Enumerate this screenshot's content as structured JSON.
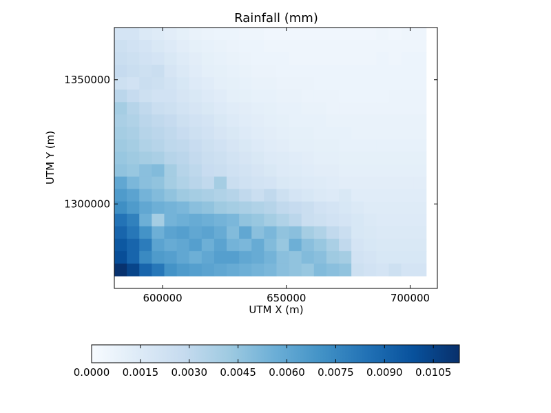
{
  "chart_data": {
    "type": "heatmap",
    "title": "Rainfall (mm)",
    "xlabel": "UTM X (m)",
    "ylabel": "UTM Y (m)",
    "x_ticks": [
      600000,
      650000,
      700000
    ],
    "x_tick_labels": [
      "600000",
      "650000",
      "700000"
    ],
    "y_ticks": [
      1300000,
      1350000
    ],
    "y_tick_labels": [
      "1300000",
      "1350000"
    ],
    "xlim": [
      580500,
      711000
    ],
    "ylim": [
      1266000,
      1371000
    ],
    "grid": false,
    "colormap": "Blues",
    "colormap_stops": [
      "#f7fbff",
      "#deebf7",
      "#c6dbef",
      "#9ecae1",
      "#6baed6",
      "#4292c6",
      "#2171b5",
      "#08519c",
      "#08306b"
    ],
    "cell_grid": {
      "x_min": 580500,
      "x_max": 706500,
      "n_cols": 25,
      "y_min": 1271000,
      "y_max": 1371000,
      "n_rows": 20
    },
    "values_top_to_bottom": [
      [
        0.002,
        0.002,
        0.0016,
        0.0014,
        0.0012,
        0.001,
        0.0008,
        0.0007,
        0.0006,
        0.0006,
        0.0005,
        0.0005,
        0.0004,
        0.0004,
        0.0004,
        0.0004,
        0.0004,
        0.0004,
        0.0004,
        0.0004,
        0.0004,
        0.0005,
        0.0004,
        0.0005,
        0.0005
      ],
      [
        0.0024,
        0.0022,
        0.002,
        0.0017,
        0.0015,
        0.0012,
        0.001,
        0.0009,
        0.0008,
        0.0007,
        0.0006,
        0.0006,
        0.0005,
        0.0005,
        0.0005,
        0.0005,
        0.0005,
        0.0005,
        0.0005,
        0.0005,
        0.0005,
        0.0005,
        0.0005,
        0.0005,
        0.0005
      ],
      [
        0.0026,
        0.0024,
        0.0022,
        0.002,
        0.0017,
        0.0014,
        0.0012,
        0.001,
        0.0009,
        0.0008,
        0.0007,
        0.0006,
        0.0006,
        0.0006,
        0.0005,
        0.0005,
        0.0005,
        0.0005,
        0.0005,
        0.0005,
        0.0005,
        0.0006,
        0.0005,
        0.0006,
        0.0006
      ],
      [
        0.0028,
        0.0026,
        0.0024,
        0.0026,
        0.0019,
        0.0016,
        0.0013,
        0.0011,
        0.001,
        0.0009,
        0.0008,
        0.0007,
        0.0007,
        0.0006,
        0.0006,
        0.0006,
        0.0006,
        0.0006,
        0.0006,
        0.0006,
        0.0006,
        0.0006,
        0.0006,
        0.0006,
        0.0006
      ],
      [
        0.0024,
        0.0022,
        0.0026,
        0.0024,
        0.0021,
        0.0018,
        0.0015,
        0.0013,
        0.0011,
        0.001,
        0.0009,
        0.0008,
        0.0008,
        0.0007,
        0.0007,
        0.0007,
        0.0006,
        0.0006,
        0.0006,
        0.0006,
        0.0006,
        0.0006,
        0.0006,
        0.0006,
        0.0006
      ],
      [
        0.0032,
        0.0028,
        0.0024,
        0.0022,
        0.0022,
        0.0019,
        0.0017,
        0.0015,
        0.0013,
        0.0011,
        0.001,
        0.0009,
        0.0009,
        0.0008,
        0.0008,
        0.0007,
        0.0007,
        0.0007,
        0.0006,
        0.0006,
        0.0006,
        0.0006,
        0.0007,
        0.0007,
        0.0007
      ],
      [
        0.004,
        0.0034,
        0.003,
        0.0026,
        0.0024,
        0.0021,
        0.0019,
        0.0017,
        0.0015,
        0.0013,
        0.0012,
        0.0011,
        0.001,
        0.0009,
        0.0009,
        0.0008,
        0.0008,
        0.0007,
        0.0007,
        0.0007,
        0.0007,
        0.0007,
        0.0007,
        0.0007,
        0.0007
      ],
      [
        0.0038,
        0.0036,
        0.0032,
        0.003,
        0.0028,
        0.0024,
        0.0022,
        0.002,
        0.0017,
        0.0015,
        0.0013,
        0.0012,
        0.0011,
        0.001,
        0.0009,
        0.0009,
        0.0009,
        0.0008,
        0.0008,
        0.0008,
        0.0008,
        0.0008,
        0.0008,
        0.0008,
        0.0008
      ],
      [
        0.004,
        0.0038,
        0.0034,
        0.0032,
        0.003,
        0.0027,
        0.0024,
        0.0022,
        0.0019,
        0.0017,
        0.0015,
        0.0013,
        0.0012,
        0.0011,
        0.001,
        0.001,
        0.0009,
        0.0009,
        0.0009,
        0.0008,
        0.0008,
        0.0008,
        0.0008,
        0.0008,
        0.0008
      ],
      [
        0.0042,
        0.004,
        0.0036,
        0.0034,
        0.0031,
        0.003,
        0.0027,
        0.0024,
        0.0022,
        0.0019,
        0.0017,
        0.0015,
        0.0013,
        0.0012,
        0.0011,
        0.0011,
        0.001,
        0.001,
        0.0009,
        0.0009,
        0.0009,
        0.0009,
        0.0009,
        0.0009,
        0.0009
      ],
      [
        0.0044,
        0.0042,
        0.004,
        0.0038,
        0.0034,
        0.0032,
        0.0029,
        0.0026,
        0.0024,
        0.0021,
        0.0019,
        0.0017,
        0.0015,
        0.0014,
        0.0013,
        0.0012,
        0.0011,
        0.0011,
        0.001,
        0.001,
        0.001,
        0.001,
        0.001,
        0.001,
        0.001
      ],
      [
        0.0046,
        0.0044,
        0.0048,
        0.005,
        0.004,
        0.0034,
        0.0031,
        0.0027,
        0.0026,
        0.0023,
        0.0021,
        0.0019,
        0.0017,
        0.0015,
        0.0014,
        0.0013,
        0.0012,
        0.0012,
        0.0011,
        0.0011,
        0.0011,
        0.0011,
        0.0011,
        0.0011,
        0.0011
      ],
      [
        0.006,
        0.0052,
        0.0048,
        0.0046,
        0.004,
        0.0036,
        0.0033,
        0.003,
        0.004,
        0.0026,
        0.0023,
        0.0021,
        0.002,
        0.0017,
        0.0016,
        0.0015,
        0.0014,
        0.0013,
        0.0012,
        0.0012,
        0.0012,
        0.0012,
        0.0012,
        0.0012,
        0.0012
      ],
      [
        0.0066,
        0.0062,
        0.0054,
        0.005,
        0.0046,
        0.0042,
        0.004,
        0.0038,
        0.0036,
        0.0034,
        0.003,
        0.0026,
        0.003,
        0.0024,
        0.002,
        0.0018,
        0.0016,
        0.0015,
        0.0017,
        0.0013,
        0.0013,
        0.0013,
        0.0013,
        0.0013,
        0.0013
      ],
      [
        0.0072,
        0.0066,
        0.006,
        0.0056,
        0.0054,
        0.0052,
        0.0048,
        0.0046,
        0.0042,
        0.004,
        0.0038,
        0.0036,
        0.0034,
        0.003,
        0.0028,
        0.0026,
        0.0022,
        0.002,
        0.0018,
        0.0016,
        0.0014,
        0.0014,
        0.0014,
        0.0014,
        0.0014
      ],
      [
        0.0084,
        0.0078,
        0.0056,
        0.004,
        0.0054,
        0.0056,
        0.0058,
        0.0056,
        0.0054,
        0.0052,
        0.0046,
        0.0044,
        0.004,
        0.0036,
        0.0032,
        0.0026,
        0.0024,
        0.0022,
        0.002,
        0.0018,
        0.0016,
        0.0015,
        0.0015,
        0.0015,
        0.0015
      ],
      [
        0.009,
        0.0082,
        0.007,
        0.0056,
        0.0062,
        0.0064,
        0.006,
        0.0062,
        0.0058,
        0.005,
        0.006,
        0.0048,
        0.0052,
        0.0046,
        0.0048,
        0.004,
        0.0036,
        0.003,
        0.0026,
        0.0018,
        0.0017,
        0.0016,
        0.0016,
        0.0016,
        0.0016
      ],
      [
        0.0096,
        0.009,
        0.008,
        0.0062,
        0.0058,
        0.006,
        0.0064,
        0.0056,
        0.0062,
        0.0054,
        0.0052,
        0.0058,
        0.005,
        0.0044,
        0.0056,
        0.0048,
        0.0044,
        0.0038,
        0.003,
        0.002,
        0.0018,
        0.0017,
        0.0017,
        0.0017,
        0.0017
      ],
      [
        0.01,
        0.009,
        0.0074,
        0.0066,
        0.0064,
        0.006,
        0.0056,
        0.006,
        0.0064,
        0.0064,
        0.006,
        0.0058,
        0.0054,
        0.0048,
        0.0046,
        0.005,
        0.0048,
        0.0042,
        0.004,
        0.0022,
        0.002,
        0.0018,
        0.0018,
        0.0018,
        0.0018
      ],
      [
        0.0112,
        0.0104,
        0.009,
        0.0082,
        0.007,
        0.0066,
        0.0064,
        0.0062,
        0.006,
        0.0058,
        0.0056,
        0.0054,
        0.0052,
        0.0048,
        0.0046,
        0.0044,
        0.005,
        0.0048,
        0.0046,
        0.0024,
        0.0022,
        0.002,
        0.0024,
        0.002,
        0.002
      ]
    ],
    "colorbar": {
      "min": 0.0,
      "max": 0.0113,
      "orientation": "horizontal",
      "ticks": [
        0.0,
        0.0015,
        0.003,
        0.0045,
        0.006,
        0.0075,
        0.009,
        0.0105
      ],
      "tick_labels": [
        "0.0000",
        "0.0015",
        "0.0030",
        "0.0045",
        "0.0060",
        "0.0075",
        "0.0090",
        "0.0105"
      ]
    }
  }
}
